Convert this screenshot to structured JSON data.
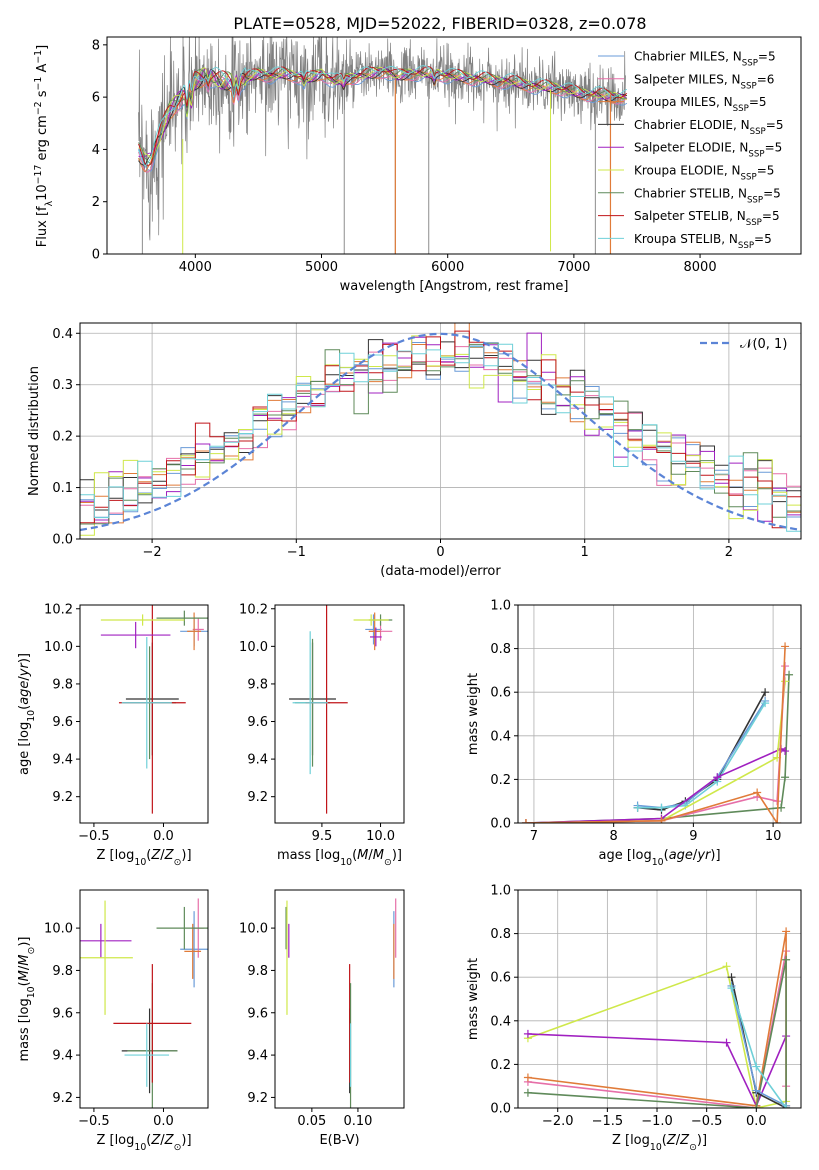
{
  "figure_title": "PLATE=0528, MJD=52022, FIBERID=0328, z=0.078",
  "model_colors": [
    "#6a9bd8",
    "#e66fa8",
    "#e07b39",
    "#333333",
    "#a020c0",
    "#cfe84a",
    "#5f8a5a",
    "#c0151a",
    "#6fd0d8"
  ],
  "chart_data": [
    {
      "id": "spectrum",
      "type": "line",
      "xlabel": "wavelength [Angstrom, rest frame]",
      "ylabel": "Flux [f_λ 10^-17 erg cm^-2 s^-1 A^-1]",
      "xlim": [
        3300,
        8800
      ],
      "ylim": [
        0,
        8.3
      ],
      "xticks": [
        4000,
        5000,
        6000,
        7000,
        8000
      ],
      "yticks": [
        0,
        2,
        4,
        6,
        8
      ],
      "grid": false,
      "legend_position": "top-right",
      "data_series_color": "#808080",
      "model_continuum": {
        "x": [
          3550,
          3600,
          3650,
          3700,
          3750,
          3800,
          3900,
          4000,
          4100,
          4200,
          4300,
          4400,
          4500,
          4600,
          4700,
          4800,
          4900,
          5000,
          5100,
          5200,
          5300,
          5400,
          5500,
          5600,
          5700,
          5800,
          5900,
          6000,
          6100,
          6200,
          6300,
          6400,
          6500,
          6600,
          6700,
          6800,
          6900,
          7000,
          7100,
          7200,
          7300,
          7400
        ],
        "y": [
          3.9,
          3.5,
          3.6,
          4.3,
          4.9,
          5.5,
          6.1,
          6.6,
          6.9,
          6.6,
          6.6,
          6.7,
          6.9,
          6.8,
          6.9,
          6.8,
          6.7,
          6.9,
          6.6,
          6.7,
          6.8,
          6.9,
          7.0,
          6.8,
          6.9,
          6.9,
          6.9,
          6.8,
          6.8,
          6.7,
          6.7,
          6.6,
          6.6,
          6.5,
          6.4,
          6.4,
          6.3,
          6.2,
          6.1,
          6.1,
          6.0,
          6.0
        ]
      },
      "series": [
        {
          "name": "Chabrier MILES, N$_{SSP}$=5"
        },
        {
          "name": "Salpeter MILES, N$_{SSP}$=6"
        },
        {
          "name": "Kroupa MILES, N$_{SSP}$=5"
        },
        {
          "name": "Chabrier ELODIE, N$_{SSP}$=5"
        },
        {
          "name": "Salpeter ELODIE, N$_{SSP}$=5"
        },
        {
          "name": "Kroupa ELODIE, N$_{SSP}$=5"
        },
        {
          "name": "Chabrier STELIB, N$_{SSP}$=5"
        },
        {
          "name": "Salpeter STELIB, N$_{SSP}$=5"
        },
        {
          "name": "Kroupa STELIB, N$_{SSP}$=5"
        }
      ]
    },
    {
      "id": "residuals",
      "type": "line",
      "xlabel": "(data-model)/error",
      "ylabel": "Normed distribution",
      "xlim": [
        -2.5,
        2.5
      ],
      "ylim": [
        0,
        0.42
      ],
      "xticks": [
        -2,
        -1,
        0,
        1,
        2
      ],
      "yticks": [
        0.0,
        0.1,
        0.2,
        0.3,
        0.4
      ],
      "grid": true,
      "legend_position": "top-right",
      "reference_curve": {
        "name": "𝒩(0, 1)",
        "color": "#5b84d6",
        "mean": 0,
        "sigma": 1
      }
    },
    {
      "id": "age_vs_Z",
      "type": "scatter",
      "xlabel": "Z [log10(Z/Z⊙)]",
      "ylabel": "age  [log10(age/yr)]",
      "xlim": [
        -0.6,
        0.32
      ],
      "ylim": [
        9.06,
        10.22
      ],
      "xticks": [
        -0.5,
        0.0
      ],
      "yticks": [
        9.2,
        9.4,
        9.6,
        9.8,
        10.0,
        10.2
      ],
      "grid": false,
      "points": [
        {
          "x": -0.08,
          "y": 9.72,
          "xerr": 0.19,
          "yerr": 0.3,
          "color": "#333333"
        },
        {
          "x": -0.1,
          "y": 9.7,
          "xerr": 0.19,
          "yerr": 0.3,
          "color": "#5f8a5a"
        },
        {
          "x": -0.08,
          "y": 9.7,
          "xerr": 0.24,
          "yerr": 0.59,
          "color": "#c0151a"
        },
        {
          "x": -0.12,
          "y": 9.7,
          "xerr": 0.18,
          "yerr": 0.35,
          "color": "#6fd0d8"
        },
        {
          "x": 0.22,
          "y": 10.08,
          "xerr": 0.1,
          "yerr": 0.08,
          "color": "#6a9bd8"
        },
        {
          "x": 0.25,
          "y": 10.09,
          "xerr": 0.04,
          "yerr": 0.06,
          "color": "#e66fa8"
        },
        {
          "x": 0.22,
          "y": 10.08,
          "xerr": 0.05,
          "yerr": 0.1,
          "color": "#e07b39"
        },
        {
          "x": 0.15,
          "y": 10.15,
          "xerr": 0.2,
          "yerr": 0.04,
          "color": "#5f8a5a"
        },
        {
          "x": -0.2,
          "y": 10.06,
          "xerr": 0.25,
          "yerr": 0.07,
          "color": "#a020c0"
        },
        {
          "x": -0.15,
          "y": 10.14,
          "xerr": 0.3,
          "yerr": 0.03,
          "color": "#cfe84a"
        }
      ]
    },
    {
      "id": "age_vs_mass",
      "type": "scatter",
      "xlabel": "mass [log10(M/M⊙)]",
      "ylabel": "",
      "xlim": [
        9.1,
        10.2
      ],
      "ylim": [
        9.06,
        10.22
      ],
      "xticks": [
        9.5,
        10.0
      ],
      "yticks": [
        9.2,
        9.4,
        9.6,
        9.8,
        10.0,
        10.2
      ],
      "grid": false,
      "points": [
        {
          "x": 9.42,
          "y": 9.72,
          "xerr": 0.2,
          "yerr": 0.3,
          "color": "#333333"
        },
        {
          "x": 9.42,
          "y": 9.7,
          "xerr": 0.15,
          "yerr": 0.34,
          "color": "#5f8a5a"
        },
        {
          "x": 9.54,
          "y": 9.7,
          "xerr": 0.18,
          "yerr": 0.59,
          "color": "#c0151a"
        },
        {
          "x": 9.4,
          "y": 9.7,
          "xerr": 0.15,
          "yerr": 0.38,
          "color": "#6fd0d8"
        },
        {
          "x": 9.94,
          "y": 10.09,
          "xerr": 0.07,
          "yerr": 0.08,
          "color": "#6a9bd8"
        },
        {
          "x": 10.0,
          "y": 10.08,
          "xerr": 0.1,
          "yerr": 0.05,
          "color": "#e66fa8"
        },
        {
          "x": 9.95,
          "y": 10.08,
          "xerr": 0.05,
          "yerr": 0.1,
          "color": "#e07b39"
        },
        {
          "x": 10.0,
          "y": 10.14,
          "xerr": 0.1,
          "yerr": 0.03,
          "color": "#5f8a5a"
        },
        {
          "x": 9.96,
          "y": 10.05,
          "xerr": 0.05,
          "yerr": 0.05,
          "color": "#a020c0"
        },
        {
          "x": 9.92,
          "y": 10.14,
          "xerr": 0.15,
          "yerr": 0.03,
          "color": "#cfe84a"
        }
      ]
    },
    {
      "id": "mass_weight_vs_age",
      "type": "line",
      "xlabel": "age  [log10(age/yr)]",
      "ylabel": "mass weight",
      "xlim": [
        6.8,
        10.35
      ],
      "ylim": [
        0,
        1.0
      ],
      "xticks": [
        7,
        8,
        9,
        10
      ],
      "yticks": [
        0.0,
        0.2,
        0.4,
        0.6,
        0.8,
        1.0
      ],
      "grid": true,
      "series": [
        {
          "color": "#333333",
          "x": [
            8.3,
            8.6,
            8.9,
            9.3,
            9.9
          ],
          "y": [
            0.07,
            0.06,
            0.1,
            0.2,
            0.6
          ]
        },
        {
          "color": "#6a9bd8",
          "x": [
            8.3,
            8.6,
            8.9,
            9.3,
            9.9
          ],
          "y": [
            0.08,
            0.07,
            0.09,
            0.21,
            0.56
          ]
        },
        {
          "color": "#6fd0d8",
          "x": [
            8.3,
            8.6,
            8.9,
            9.3,
            9.9
          ],
          "y": [
            0.07,
            0.07,
            0.08,
            0.19,
            0.55
          ]
        },
        {
          "color": "#5f8a5a",
          "x": [
            6.9,
            8.6,
            10.1,
            10.15,
            10.2
          ],
          "y": [
            0.0,
            0.02,
            0.07,
            0.21,
            0.68
          ]
        },
        {
          "color": "#a020c0",
          "x": [
            6.9,
            8.6,
            9.3,
            10.1,
            10.15
          ],
          "y": [
            0.0,
            0.02,
            0.21,
            0.34,
            0.33
          ]
        },
        {
          "color": "#cfe84a",
          "x": [
            6.9,
            8.6,
            10.05,
            10.15
          ],
          "y": [
            0.0,
            0.01,
            0.3,
            0.65
          ]
        },
        {
          "color": "#e66fa8",
          "x": [
            6.9,
            8.6,
            9.8,
            10.05,
            10.15
          ],
          "y": [
            0.0,
            0.01,
            0.12,
            0.1,
            0.72
          ]
        },
        {
          "color": "#e07b39",
          "x": [
            6.9,
            8.6,
            9.8,
            10.05,
            10.15
          ],
          "y": [
            0.0,
            0.01,
            0.14,
            0.0,
            0.81
          ]
        }
      ]
    },
    {
      "id": "mass_vs_Z",
      "type": "scatter",
      "xlabel": "Z [log10(Z/Z⊙)]",
      "ylabel": "mass [log10(M/M⊙)]",
      "xlim": [
        -0.6,
        0.32
      ],
      "ylim": [
        9.15,
        10.18
      ],
      "xticks": [
        -0.5,
        0.0
      ],
      "yticks": [
        9.2,
        9.4,
        9.6,
        9.8,
        10.0
      ],
      "grid": false,
      "points": [
        {
          "x": -0.1,
          "y": 9.42,
          "xerr": 0.2,
          "yerr": 0.2,
          "color": "#333333"
        },
        {
          "x": -0.08,
          "y": 9.42,
          "xerr": 0.18,
          "yerr": 0.32,
          "color": "#5f8a5a"
        },
        {
          "x": -0.08,
          "y": 9.55,
          "xerr": 0.28,
          "yerr": 0.28,
          "color": "#c0151a"
        },
        {
          "x": -0.12,
          "y": 9.4,
          "xerr": 0.16,
          "yerr": 0.15,
          "color": "#6fd0d8"
        },
        {
          "x": 0.22,
          "y": 9.9,
          "xerr": 0.1,
          "yerr": 0.18,
          "color": "#6a9bd8"
        },
        {
          "x": 0.25,
          "y": 10.0,
          "xerr": 0.04,
          "yerr": 0.14,
          "color": "#e66fa8"
        },
        {
          "x": 0.21,
          "y": 9.89,
          "xerr": 0.06,
          "yerr": 0.13,
          "color": "#e07b39"
        },
        {
          "x": 0.15,
          "y": 10.0,
          "xerr": 0.2,
          "yerr": 0.1,
          "color": "#5f8a5a"
        },
        {
          "x": -0.45,
          "y": 9.94,
          "xerr": 0.22,
          "yerr": 0.08,
          "color": "#a020c0"
        },
        {
          "x": -0.42,
          "y": 9.86,
          "xerr": 0.2,
          "yerr": 0.27,
          "color": "#cfe84a"
        }
      ]
    },
    {
      "id": "mass_vs_EBV",
      "type": "scatter",
      "xlabel": "E(B-V)",
      "ylabel": "",
      "xlim": [
        0.01,
        0.15
      ],
      "ylim": [
        9.15,
        10.18
      ],
      "xticks": [
        0.05,
        0.1
      ],
      "yticks": [
        9.2,
        9.4,
        9.6,
        9.8,
        10.0
      ],
      "grid": false,
      "points": [
        {
          "x": 0.091,
          "y": 9.42,
          "yerr": 0.2,
          "color": "#333333"
        },
        {
          "x": 0.091,
          "y": 9.55,
          "yerr": 0.28,
          "color": "#c0151a"
        },
        {
          "x": 0.092,
          "y": 9.42,
          "yerr": 0.32,
          "color": "#5f8a5a"
        },
        {
          "x": 0.092,
          "y": 9.4,
          "yerr": 0.15,
          "color": "#6fd0d8"
        },
        {
          "x": 0.139,
          "y": 9.9,
          "yerr": 0.18,
          "color": "#6a9bd8"
        },
        {
          "x": 0.141,
          "y": 10.0,
          "yerr": 0.14,
          "color": "#e66fa8"
        },
        {
          "x": 0.139,
          "y": 9.89,
          "yerr": 0.13,
          "color": "#e07b39"
        },
        {
          "x": 0.022,
          "y": 10.0,
          "yerr": 0.1,
          "color": "#5f8a5a"
        },
        {
          "x": 0.025,
          "y": 9.94,
          "yerr": 0.08,
          "color": "#a020c0"
        },
        {
          "x": 0.023,
          "y": 9.86,
          "yerr": 0.27,
          "color": "#cfe84a"
        }
      ]
    },
    {
      "id": "mass_weight_vs_Z",
      "type": "line",
      "xlabel": "Z [log10(Z/Z⊙)]",
      "ylabel": "mass weight",
      "xlim": [
        -2.4,
        0.45
      ],
      "ylim": [
        0,
        1.0
      ],
      "xticks": [
        -2.0,
        -1.5,
        -1.0,
        -0.5,
        0.0
      ],
      "yticks": [
        0.0,
        0.2,
        0.4,
        0.6,
        0.8,
        1.0
      ],
      "grid": true,
      "series": [
        {
          "color": "#cfe84a",
          "x": [
            -2.3,
            -0.3,
            0.0,
            0.3
          ],
          "y": [
            0.32,
            0.65,
            0.0,
            0.03
          ]
        },
        {
          "color": "#a020c0",
          "x": [
            -2.3,
            -0.3,
            0.0,
            0.3
          ],
          "y": [
            0.34,
            0.3,
            0.01,
            0.33
          ]
        },
        {
          "color": "#e66fa8",
          "x": [
            -2.3,
            0.0,
            0.3,
            0.3
          ],
          "y": [
            0.12,
            0.0,
            0.72,
            0.1
          ]
        },
        {
          "color": "#e07b39",
          "x": [
            -2.3,
            0.0,
            0.3,
            0.3
          ],
          "y": [
            0.14,
            0.01,
            0.81,
            0.01
          ]
        },
        {
          "color": "#5f8a5a",
          "x": [
            -2.3,
            0.0,
            0.3,
            0.3
          ],
          "y": [
            0.07,
            0.0,
            0.68,
            0.0
          ]
        },
        {
          "color": "#333333",
          "x": [
            -0.25,
            0.0,
            0.3
          ],
          "y": [
            0.6,
            0.07,
            0.0
          ]
        },
        {
          "color": "#6a9bd8",
          "x": [
            -0.25,
            0.0,
            0.3
          ],
          "y": [
            0.56,
            0.08,
            0.01
          ]
        },
        {
          "color": "#6fd0d8",
          "x": [
            -0.25,
            0.0,
            0.3
          ],
          "y": [
            0.55,
            0.19,
            0.0
          ]
        }
      ]
    }
  ]
}
